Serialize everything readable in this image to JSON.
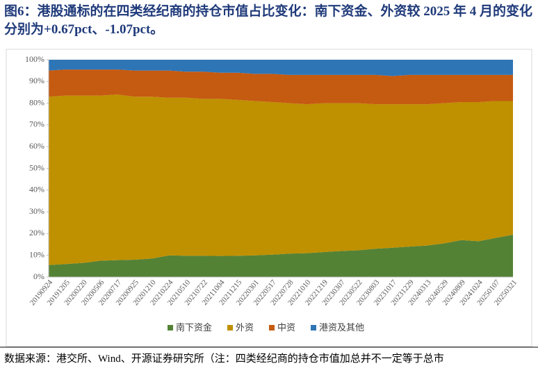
{
  "chart_data": {
    "type": "stacked_area",
    "title": "图6：港股通标的在四类经纪商的持仓市值占比变化：南下资金、外资较 2025 年 4 月的变化分别为+0.67pct、-1.07pct。",
    "source": "数据来源：港交所、Wind、开源证券研究所（注：四类经纪商的持仓市值加总并不一定等于总市",
    "categories": [
      "20190924",
      "20191205",
      "20200220",
      "20200506",
      "20200717",
      "20200925",
      "20201210",
      "20210224",
      "20210510",
      "20210722",
      "20211004",
      "20211215",
      "20220301",
      "20220517",
      "20220728",
      "20221010",
      "20221219",
      "20230307",
      "20230522",
      "20230803",
      "20231017",
      "20231229",
      "20240313",
      "20240529",
      "20240809",
      "20241024",
      "20250107",
      "20250321"
    ],
    "series": [
      {
        "name": "南下资金",
        "color": "#548235",
        "values": [
          5.5,
          6,
          6.5,
          7.5,
          7.8,
          8,
          8.5,
          10,
          9.8,
          9.8,
          9.7,
          9.8,
          10,
          10.3,
          10.8,
          11,
          11.5,
          12,
          12.3,
          13,
          13.5,
          14,
          14.5,
          15.5,
          17,
          16.5,
          18,
          19.5
        ]
      },
      {
        "name": "外资",
        "color": "#bf9000",
        "values": [
          77.5,
          77.5,
          77,
          76,
          76.2,
          75,
          74.5,
          72.5,
          72.7,
          72.2,
          72.3,
          71.7,
          71,
          70.2,
          69.2,
          68.5,
          68.5,
          68,
          67.7,
          66.5,
          66,
          65.5,
          65,
          64.5,
          63.5,
          64,
          63,
          61.5
        ]
      },
      {
        "name": "中资",
        "color": "#c55a11",
        "values": [
          12,
          12,
          12,
          12,
          11.5,
          12,
          12,
          12.5,
          12,
          12.5,
          12,
          12.5,
          12.5,
          13,
          13,
          13.5,
          13,
          13,
          13,
          13.5,
          13,
          13.5,
          13.5,
          13,
          12.5,
          12.5,
          12,
          12
        ]
      },
      {
        "name": "港资及其他",
        "color": "#2e75b6",
        "values": [
          5,
          4.5,
          4.5,
          4.5,
          4.5,
          5,
          5,
          5,
          5.5,
          5.5,
          6,
          6,
          6.5,
          6.5,
          7,
          7,
          7,
          7,
          7,
          7,
          7.5,
          7,
          7,
          7,
          7,
          7,
          7,
          7
        ]
      }
    ],
    "ylim": [
      0,
      100
    ],
    "yticks": [
      {
        "value": 0,
        "label": "0%"
      },
      {
        "value": 10,
        "label": "10%"
      },
      {
        "value": 20,
        "label": "20%"
      },
      {
        "value": 30,
        "label": "30%"
      },
      {
        "value": 40,
        "label": "40%"
      },
      {
        "value": 50,
        "label": "50%"
      },
      {
        "value": 60,
        "label": "60%"
      },
      {
        "value": 70,
        "label": "70%"
      },
      {
        "value": 80,
        "label": "80%"
      },
      {
        "value": 90,
        "label": "90%"
      },
      {
        "value": 100,
        "label": "100%"
      }
    ],
    "legend": "bottom"
  }
}
